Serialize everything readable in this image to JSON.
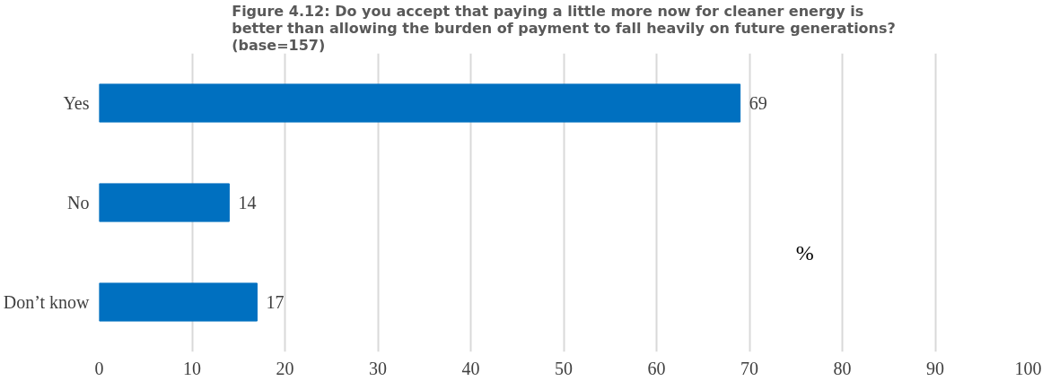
{
  "chart_data": {
    "type": "bar",
    "orientation": "horizontal",
    "title": "Figure 4.12: Do you accept that paying a little more now for cleaner energy is\nbetter than allowing the burden of payment to fall heavily on future generations?\n(base=157)",
    "categories": [
      "Yes",
      "No",
      "Don’t know"
    ],
    "values": [
      69,
      14,
      17
    ],
    "color": "#0070c0",
    "xlim": [
      0,
      100
    ],
    "xticks": [
      0,
      10,
      20,
      30,
      40,
      50,
      60,
      70,
      80,
      90,
      100
    ],
    "grid": "x",
    "data_labels": true,
    "annotations": [
      "%"
    ]
  }
}
